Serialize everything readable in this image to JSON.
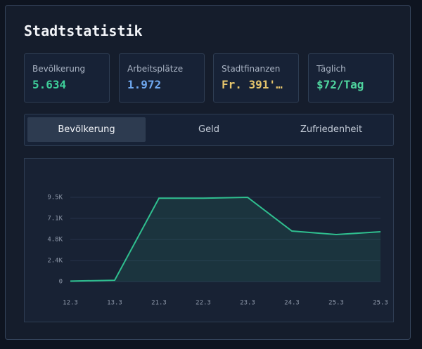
{
  "title": "Stadtstatistik",
  "stats": [
    {
      "label": "Bevölkerung",
      "value": "5.634",
      "color": "#3ecf9a"
    },
    {
      "label": "Arbeitsplätze",
      "value": "1.972",
      "color": "#6fa8f0"
    },
    {
      "label": "Stadtfinanzen",
      "value": "Fr. 391'…",
      "color": "#e6c56c"
    },
    {
      "label": "Täglich",
      "value": "$72/Tag",
      "color": "#4fd49e"
    }
  ],
  "tabs": [
    "Bevölkerung",
    "Geld",
    "Zufriedenheit"
  ],
  "chart_data": {
    "type": "area",
    "color": "#2fbf8f",
    "categories": [
      "12.3",
      "13.3",
      "21.3",
      "22.3",
      "23.3",
      "24.3",
      "25.3",
      "25.3"
    ],
    "values": [
      50,
      150,
      9400,
      9400,
      9500,
      5700,
      5300,
      5620
    ],
    "ylim": [
      0,
      11875
    ],
    "yticks": [
      0,
      {
        "value": 2375,
        "label": "2.4K"
      },
      {
        "value": 4750,
        "label": "4.8K"
      },
      {
        "value": 7125,
        "label": "7.1K"
      },
      {
        "value": 9500,
        "label": "9.5K"
      }
    ],
    "grid": true
  }
}
